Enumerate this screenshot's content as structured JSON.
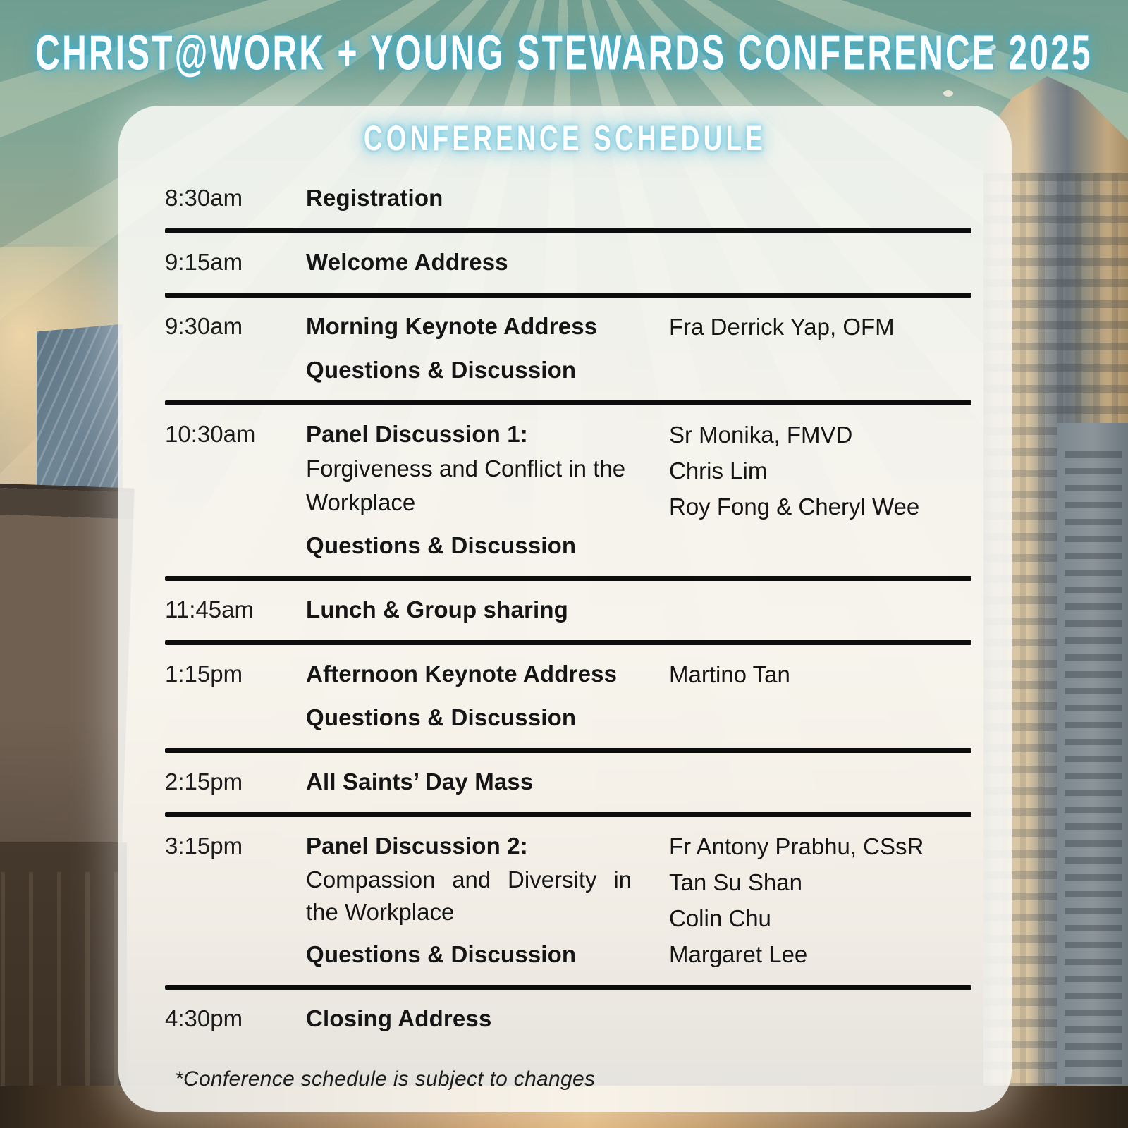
{
  "poster": {
    "title": "CHRIST@WORK + YOUNG STEWARDS CONFERENCE 2025",
    "schedule_heading": "CONFERENCE SCHEDULE",
    "footnote": "*Conference schedule is subject to changes"
  },
  "colors": {
    "title_glow": "#3cb2d6",
    "heading_glow": "#6cc6e0",
    "text": "#151515",
    "separator": "#0d0d0d",
    "card_background": "rgba(251,250,247,0.88)",
    "sky_teal": "#6f9e91",
    "street_amber": "#e0b578"
  },
  "schedule": {
    "rows": [
      {
        "time": "8:30am",
        "title": "Registration"
      },
      {
        "time": "9:15am",
        "title": "Welcome Address"
      },
      {
        "time": "9:30am",
        "title": "Morning Keynote Address",
        "subtitle": "Questions & Discussion",
        "speakers": [
          "Fra Derrick Yap, OFM"
        ]
      },
      {
        "time": "10:30am",
        "title": "Panel Discussion 1:",
        "description": "Forgiveness and Conflict in the Workplace",
        "subtitle": "Questions & Discussion",
        "speakers": [
          "Sr Monika, FMVD",
          "Chris Lim",
          "Roy Fong & Cheryl Wee"
        ]
      },
      {
        "time": "11:45am",
        "title": "Lunch & Group sharing"
      },
      {
        "time": "1:15pm",
        "title": "Afternoon Keynote Address",
        "subtitle": "Questions & Discussion",
        "speakers": [
          "Martino Tan"
        ]
      },
      {
        "time": "2:15pm",
        "title": "All Saints’ Day Mass"
      },
      {
        "time": "3:15pm",
        "title": "Panel Discussion 2:",
        "description": "Compassion and Diversity in the Workplace",
        "subtitle": "Questions & Discussion",
        "speakers": [
          "Fr Antony Prabhu, CSsR",
          "Tan Su Shan",
          "Colin Chu",
          "Margaret Lee"
        ]
      },
      {
        "time": "4:30pm",
        "title": "Closing Address"
      }
    ]
  }
}
